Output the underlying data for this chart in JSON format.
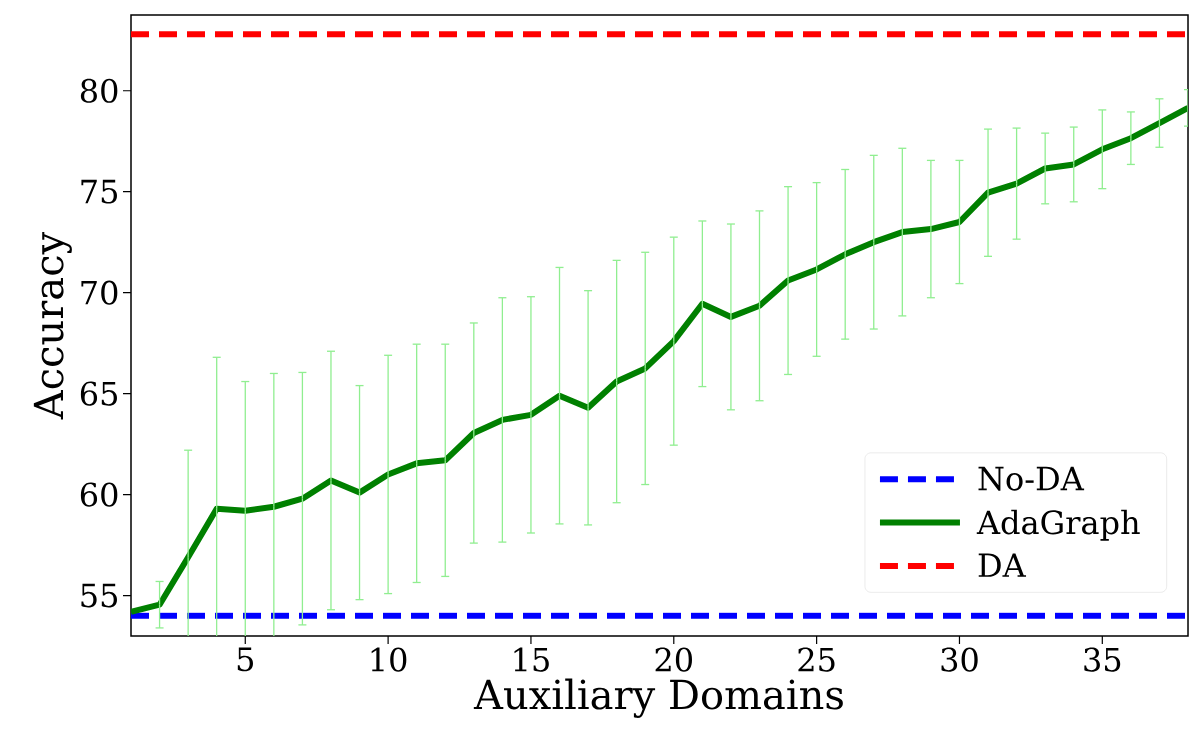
{
  "chart_data": {
    "type": "line",
    "xlabel": "Auxiliary Domains",
    "ylabel": "Accuracy",
    "xlim": [
      1,
      38
    ],
    "ylim": [
      53,
      83.75
    ],
    "xticks": [
      5,
      10,
      15,
      20,
      25,
      30,
      35
    ],
    "yticks": [
      55,
      60,
      65,
      70,
      75,
      80
    ],
    "legend": "bottom right",
    "marker": "none",
    "grid": false,
    "series": [
      {
        "name": "No-DA",
        "color": "#0000ff",
        "line_style": "dashed",
        "x": [
          1,
          38
        ],
        "values": [
          54.0,
          54.0
        ]
      },
      {
        "name": "AdaGraph",
        "color": "#008000",
        "line_style": "solid",
        "x": [
          1,
          2,
          3,
          4,
          5,
          6,
          7,
          8,
          9,
          10,
          11,
          12,
          13,
          14,
          15,
          16,
          17,
          18,
          19,
          20,
          21,
          22,
          23,
          24,
          25,
          26,
          27,
          28,
          29,
          30,
          31,
          32,
          33,
          34,
          35,
          36,
          37,
          38
        ],
        "values": [
          54.2,
          54.55,
          56.9,
          59.3,
          59.2,
          59.4,
          59.8,
          60.7,
          60.1,
          61.0,
          61.55,
          61.7,
          63.05,
          63.7,
          63.95,
          64.9,
          64.3,
          65.6,
          66.25,
          67.6,
          69.45,
          68.8,
          69.35,
          70.6,
          71.15,
          71.9,
          72.5,
          73.0,
          73.15,
          73.5,
          74.95,
          75.4,
          76.15,
          76.35,
          77.1,
          77.65,
          78.4,
          79.15
        ],
        "errors": [
          null,
          1.15,
          5.3,
          7.5,
          6.4,
          6.6,
          6.25,
          6.4,
          5.3,
          5.9,
          5.9,
          5.75,
          5.45,
          6.05,
          5.85,
          6.35,
          5.8,
          6.0,
          5.75,
          5.15,
          4.1,
          4.6,
          4.7,
          4.65,
          4.3,
          4.2,
          4.3,
          4.15,
          3.4,
          3.05,
          3.15,
          2.75,
          1.75,
          1.85,
          1.95,
          1.3,
          1.2,
          0.9
        ]
      },
      {
        "name": "DA",
        "color": "#ff0000",
        "line_style": "dashed",
        "x": [
          1,
          38
        ],
        "values": [
          82.8,
          82.8
        ]
      }
    ]
  }
}
